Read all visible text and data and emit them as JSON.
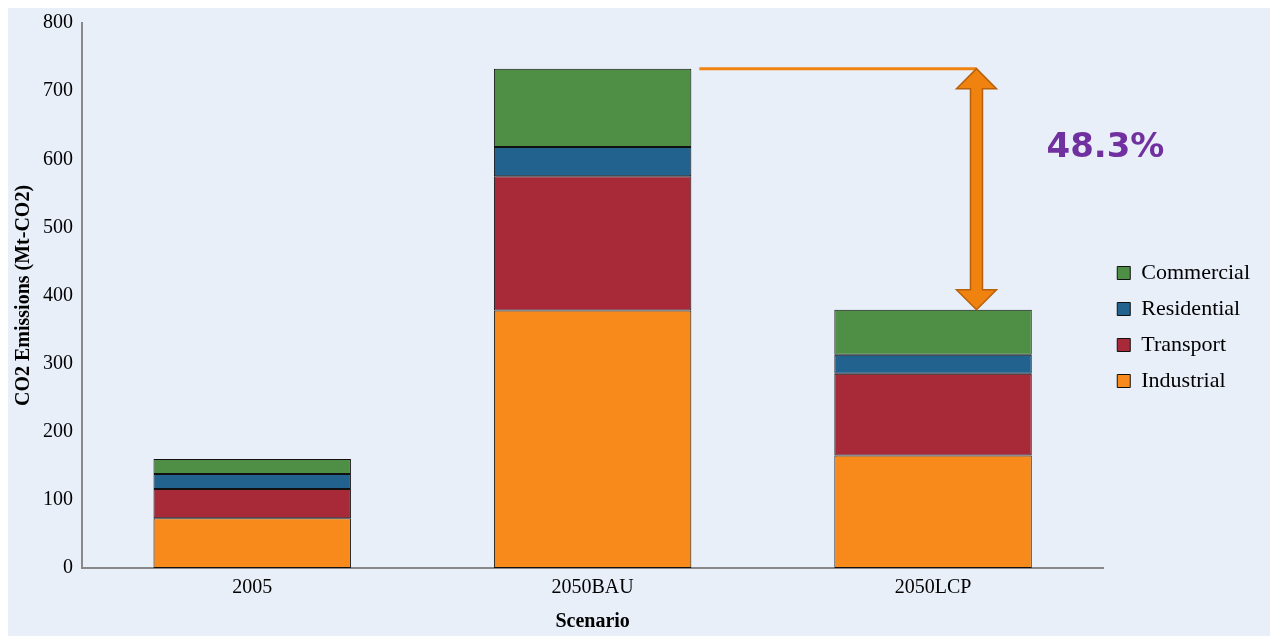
{
  "chart_data": {
    "type": "bar",
    "stacked": true,
    "xlabel": "Scenario",
    "ylabel": "CO2 Emissions (Mt-CO2)",
    "categories": [
      "2005",
      "2050BAU",
      "2050LCP"
    ],
    "series": [
      {
        "name": "Industrial",
        "color": "#f78a1a",
        "values": [
          73,
          378,
          165
        ]
      },
      {
        "name": "Transport",
        "color": "#a82a38",
        "values": [
          43,
          197,
          120
        ]
      },
      {
        "name": "Residential",
        "color": "#22628e",
        "values": [
          22,
          43,
          28
        ]
      },
      {
        "name": "Commercial",
        "color": "#4f8f45",
        "values": [
          22,
          115,
          66
        ]
      }
    ],
    "ylim": [
      0,
      800
    ],
    "yticks": [
      0,
      100,
      200,
      300,
      400,
      500,
      600,
      700,
      800
    ],
    "grid": false,
    "legend": "right",
    "annotations": [
      "48.3%"
    ]
  }
}
